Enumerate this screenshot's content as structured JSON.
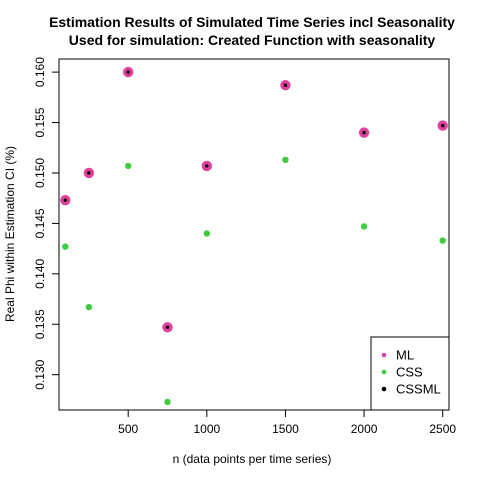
{
  "chart_data": {
    "type": "scatter",
    "title": "Estimation Results of Simulated Time Series incl Seasonality",
    "subtitle": "Used for simulation: Created Function with seasonality",
    "xlabel": "n (data points per time series)",
    "ylabel": "Real Phi within Estimation CI (%)",
    "xlim": [
      60,
      2540
    ],
    "ylim": [
      0.1265,
      0.1613
    ],
    "x_ticks": [
      500,
      1000,
      1500,
      2000,
      2500
    ],
    "x_tick_labels": [
      "500",
      "1000",
      "1500",
      "2000",
      "2500"
    ],
    "y_ticks": [
      0.13,
      0.135,
      0.14,
      0.145,
      0.15,
      0.155,
      0.16
    ],
    "y_tick_labels": [
      "0.130",
      "0.135",
      "0.140",
      "0.145",
      "0.150",
      "0.155",
      "0.160"
    ],
    "grid": false,
    "legend_position": "bottom-right",
    "series": [
      {
        "name": "ML",
        "color": "#e0409e",
        "x": [
          100,
          250,
          500,
          750,
          1000,
          1500,
          2000,
          2500
        ],
        "y": [
          0.1473,
          0.15,
          0.16,
          0.1347,
          0.1507,
          0.1587,
          0.154,
          0.1547
        ]
      },
      {
        "name": "CSS",
        "color": "#3fcc3f",
        "x": [
          100,
          250,
          500,
          750,
          1000,
          1500,
          2000,
          2500
        ],
        "y": [
          0.1427,
          0.1367,
          0.1507,
          0.1273,
          0.144,
          0.1513,
          0.1447,
          0.1433
        ]
      },
      {
        "name": "CSSML",
        "color": "#000000",
        "x": [
          100,
          250,
          500,
          750,
          1000,
          1500,
          2000,
          2500
        ],
        "y": [
          0.1473,
          0.15,
          0.16,
          0.1347,
          0.1507,
          0.1587,
          0.154,
          0.1547
        ]
      }
    ]
  }
}
